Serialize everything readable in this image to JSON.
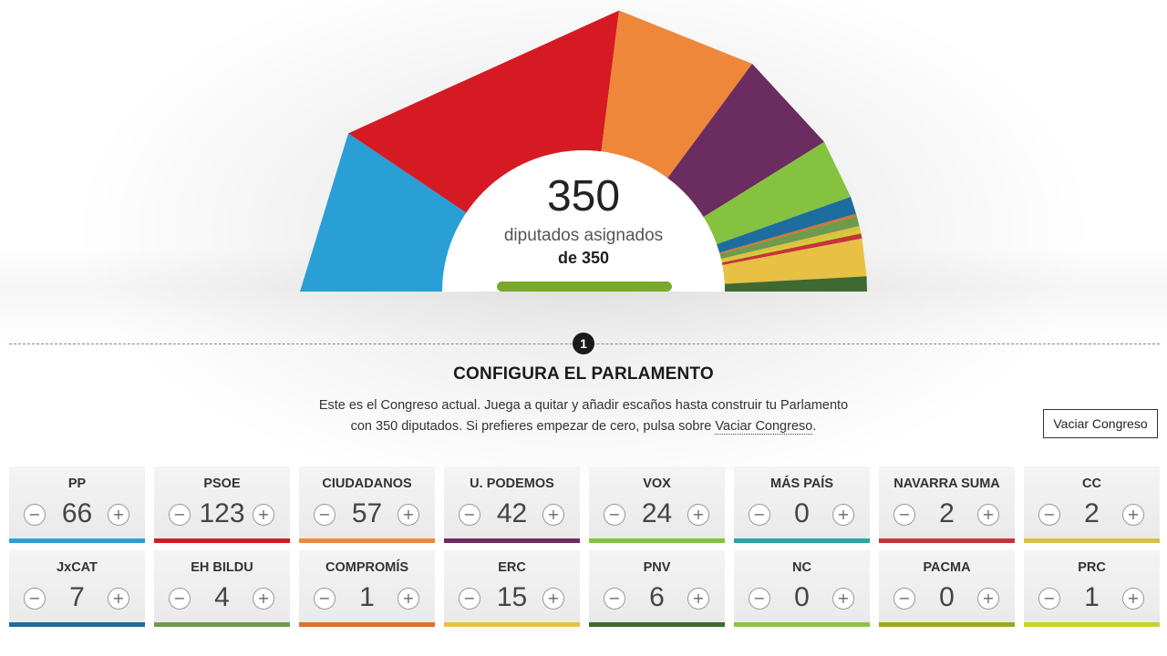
{
  "hemicycle": {
    "assigned": "350",
    "assigned_label": "diputados asignados",
    "total_label": "de 350",
    "progress_fraction": 1.0
  },
  "step": {
    "number": "1",
    "title": "CONFIGURA EL PARLAMENTO"
  },
  "intro": {
    "line1": "Este es el Congreso actual. Juega a quitar y añadir escaños hasta construir tu Parlamento",
    "line2_prefix": "con 350 diputados. Si prefieres empezar de cero, pulsa sobre ",
    "line2_link": "Vaciar Congreso",
    "line2_suffix": "."
  },
  "empty_button_label": "Vaciar Congreso",
  "minus_symbol": "−",
  "plus_symbol": "+",
  "parties": [
    {
      "name": "PP",
      "seats": 66,
      "color": "#2a9fd6"
    },
    {
      "name": "PSOE",
      "seats": 123,
      "color": "#d51a24"
    },
    {
      "name": "CIUDADANOS",
      "seats": 57,
      "color": "#ef873a"
    },
    {
      "name": "U. PODEMOS",
      "seats": 42,
      "color": "#6b2c5f"
    },
    {
      "name": "VOX",
      "seats": 24,
      "color": "#84c23f"
    },
    {
      "name": "MÁS PAÍS",
      "seats": 0,
      "color": "#27a6a3"
    },
    {
      "name": "NAVARRA SUMA",
      "seats": 2,
      "color": "#c8323a"
    },
    {
      "name": "CC",
      "seats": 2,
      "color": "#dcc042"
    },
    {
      "name": "JxCAT",
      "seats": 7,
      "color": "#1d6d9e"
    },
    {
      "name": "EH BILDU",
      "seats": 4,
      "color": "#6f9a4c"
    },
    {
      "name": "COMPROMÍS",
      "seats": 1,
      "color": "#d9712f"
    },
    {
      "name": "ERC",
      "seats": 15,
      "color": "#e8c044"
    },
    {
      "name": "PNV",
      "seats": 6,
      "color": "#3e6a31"
    },
    {
      "name": "NC",
      "seats": 0,
      "color": "#8cc448"
    },
    {
      "name": "PACMA",
      "seats": 0,
      "color": "#9aa81c"
    },
    {
      "name": "PRC",
      "seats": 1,
      "color": "#c8d426"
    }
  ],
  "hemicycle_order": [
    "PP",
    "PSOE",
    "CIUDADANOS",
    "U. PODEMOS",
    "VOX",
    "MÁS PAÍS",
    "JxCAT",
    "COMPROMÍS",
    "EH BILDU",
    "CC",
    "PRC",
    "NAVARRA SUMA",
    "ERC",
    "PNV",
    "PACMA",
    "NC"
  ]
}
